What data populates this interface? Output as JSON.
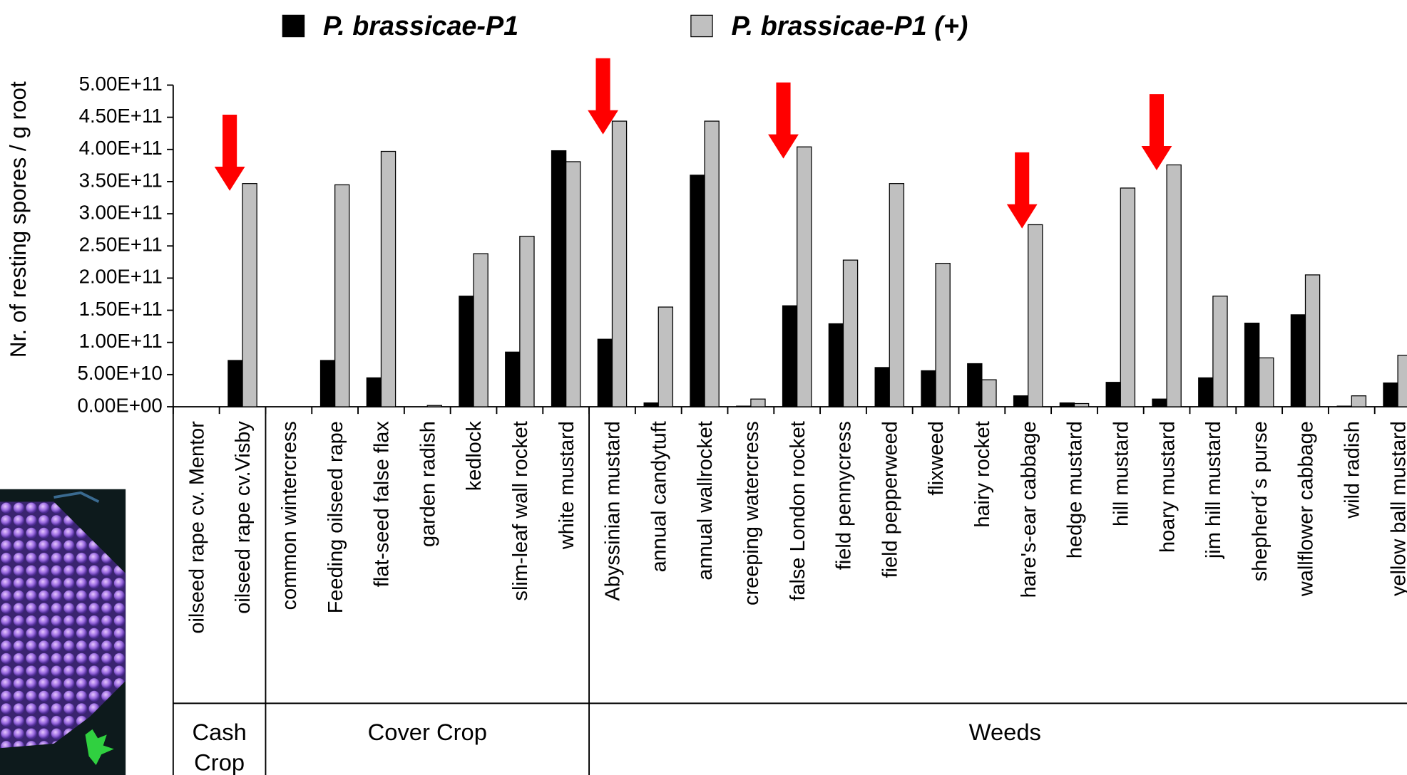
{
  "chart_data": {
    "type": "bar",
    "y_label": "Nr. of resting spores / g root",
    "categories": [
      "oilseed rape cv. Mentor",
      "oilseed rape cv.Visby",
      "common wintercress",
      "Feeding oilseed rape",
      "flat-seed false flax",
      "garden radish",
      "kedlock",
      "slim-leaf wall rocket",
      "white mustard",
      "Abyssinian mustard",
      "annual candytuft",
      "annual wallrocket",
      "creeping watercress",
      "false London rocket",
      "field pennycress",
      "field pepperweed",
      "flixweed",
      "hairy rocket",
      "hare's-ear cabbage",
      "hedge mustard",
      "hill mustard",
      "hoary mustard",
      "jim hill mustard",
      "shepherd´s purse",
      "wallflower cabbage",
      "wild radish",
      "yellow ball mustard"
    ],
    "category_groups": [
      "Cash Crop",
      "Cash Crop",
      "Cover Crop",
      "Cover Crop",
      "Cover Crop",
      "Cover Crop",
      "Cover Crop",
      "Cover Crop",
      "Cover Crop",
      "Weeds",
      "Weeds",
      "Weeds",
      "Weeds",
      "Weeds",
      "Weeds",
      "Weeds",
      "Weeds",
      "Weeds",
      "Weeds",
      "Weeds",
      "Weeds",
      "Weeds",
      "Weeds",
      "Weeds",
      "Weeds",
      "Weeds",
      "Weeds"
    ],
    "series": [
      {
        "name": "P. brassicae-P1",
        "color": "#000000",
        "values": [
          0,
          72000000000,
          0,
          72000000000,
          45000000000,
          0,
          172000000000,
          85000000000,
          398000000000,
          105000000000,
          6000000000,
          360000000000,
          1000000000,
          157000000000,
          129000000000,
          61000000000,
          56000000000,
          67000000000,
          17000000000,
          6000000000,
          38000000000,
          12000000000,
          45000000000,
          130000000000,
          143000000000,
          1000000000,
          37000000000
        ]
      },
      {
        "name": "P. brassicae-P1 (+)",
        "color": "#c0c0c0",
        "values": [
          0,
          347000000000,
          0,
          345000000000,
          397000000000,
          2000000000,
          238000000000,
          265000000000,
          381000000000,
          444000000000,
          155000000000,
          444000000000,
          12000000000,
          404000000000,
          228000000000,
          347000000000,
          223000000000,
          42000000000,
          283000000000,
          5000000000,
          340000000000,
          376000000000,
          172000000000,
          76000000000,
          205000000000,
          17000000000,
          80000000000
        ]
      }
    ],
    "ylim": [
      0,
      500000000000
    ],
    "yticks": [
      {
        "value": 0,
        "label": "0.00E+00"
      },
      {
        "value": 50000000000,
        "label": "5.00E+10"
      },
      {
        "value": 100000000000,
        "label": "1.00E+11"
      },
      {
        "value": 150000000000,
        "label": "1.50E+11"
      },
      {
        "value": 200000000000,
        "label": "2.00E+11"
      },
      {
        "value": 250000000000,
        "label": "2.50E+11"
      },
      {
        "value": 300000000000,
        "label": "3.00E+11"
      },
      {
        "value": 350000000000,
        "label": "3.50E+11"
      },
      {
        "value": 400000000000,
        "label": "4.00E+11"
      },
      {
        "value": 450000000000,
        "label": "4.50E+11"
      },
      {
        "value": 500000000000,
        "label": "5.00E+11"
      }
    ],
    "legend": "top"
  }
}
